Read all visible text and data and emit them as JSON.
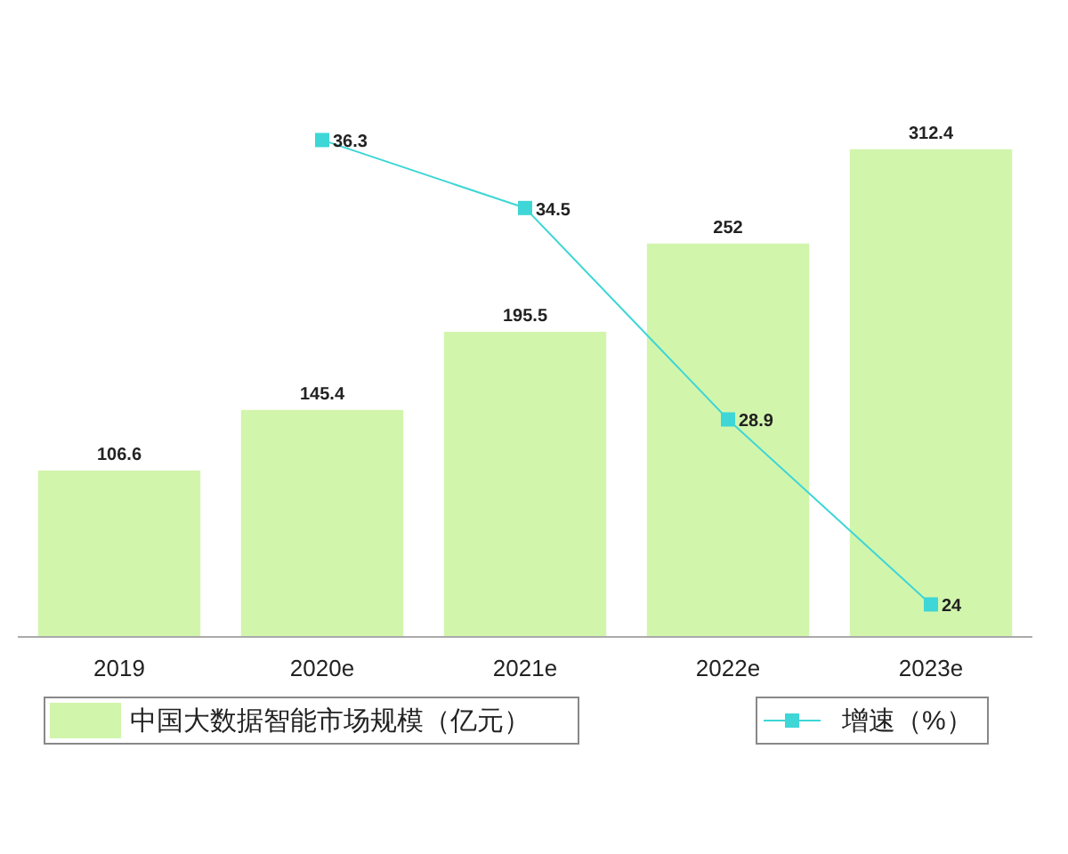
{
  "chart_data": {
    "type": "bar",
    "categories": [
      "2019",
      "2020e",
      "2021e",
      "2022e",
      "2023e"
    ],
    "series": [
      {
        "name": "中国大数据智能市场规模（亿元）",
        "color": "#d2f5ac",
        "values": [
          106.6,
          145.4,
          195.5,
          252,
          312.4
        ]
      },
      {
        "name": "增速（%）",
        "type": "line",
        "axis": "y2",
        "color": "#3ed6d6",
        "values": [
          null,
          36.3,
          34.5,
          28.9,
          24
        ]
      }
    ],
    "tick_labels": "x",
    "data_labels": true,
    "legend": "bottom",
    "marker": "square",
    "line_style": "solid"
  }
}
